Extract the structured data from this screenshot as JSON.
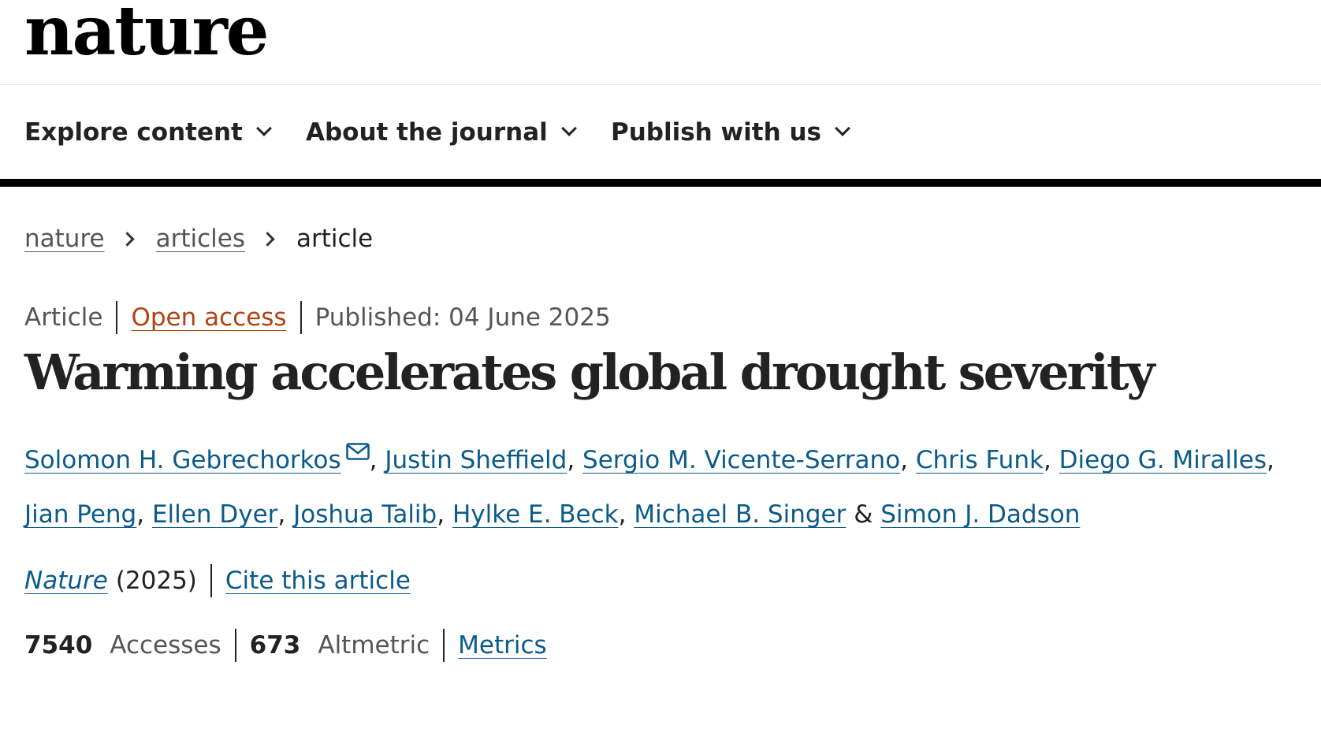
{
  "header": {
    "logo": "nature"
  },
  "nav": {
    "items": [
      {
        "label": "Explore content"
      },
      {
        "label": "About the journal"
      },
      {
        "label": "Publish with us"
      }
    ]
  },
  "breadcrumb": {
    "items": [
      "nature",
      "articles",
      "article"
    ]
  },
  "article": {
    "type": "Article",
    "access": "Open access",
    "published": "Published: 04 June 2025",
    "title": "Warming accelerates global drought severity",
    "authors": [
      "Solomon H. Gebrechorkos",
      "Justin Sheffield",
      "Sergio M. Vicente-Serrano",
      "Chris Funk",
      "Diego G. Miralles",
      "Jian Peng",
      "Ellen Dyer",
      "Joshua Talib",
      "Hylke E. Beck",
      "Michael B. Singer",
      "Simon J. Dadson"
    ],
    "author_separator": ", ",
    "author_final_separator": " & ",
    "journal": "Nature",
    "year": "(2025)",
    "cite_label": "Cite this article"
  },
  "metrics": {
    "accesses_count": "7540",
    "accesses_label": "Accesses",
    "altmetric_count": "673",
    "altmetric_label": "Altmetric",
    "metrics_link": "Metrics"
  },
  "colors": {
    "link": "#0a5a8a",
    "open_access": "#b2420f",
    "text": "#222222"
  }
}
